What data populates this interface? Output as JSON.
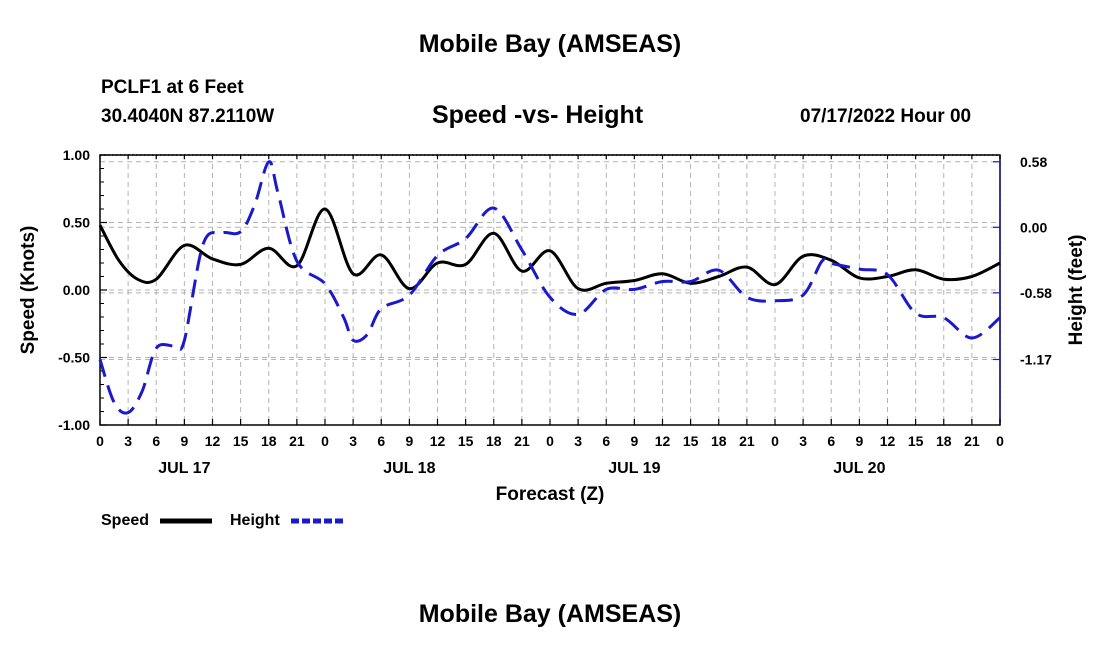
{
  "header": {
    "title": "Mobile Bay (AMSEAS)",
    "station": "PCLF1 at 6 Feet",
    "coords": "30.4040N  87.2110W",
    "chart_title": "Speed -vs- Height",
    "datetime": "07/17/2022 Hour 00"
  },
  "footer": {
    "title": "Mobile Bay (AMSEAS)"
  },
  "colors": {
    "speed": "#000000",
    "height": "#1a1acc",
    "grid": "#b4b4b4"
  },
  "chart_data": {
    "type": "line",
    "title": "Speed -vs- Height",
    "xlabel": "Forecast (Z)",
    "ylabel": "Speed (Knots)",
    "y2label": "Height (feet)",
    "x_hours": [
      0,
      3,
      6,
      9,
      12,
      15,
      18,
      21,
      24,
      27,
      30,
      33,
      36,
      39,
      42,
      45,
      48,
      51,
      54,
      57,
      60,
      63,
      66,
      69,
      72,
      75,
      78,
      81,
      84,
      87,
      90,
      93,
      96
    ],
    "x_tick_labels": [
      "0",
      "3",
      "6",
      "9",
      "12",
      "15",
      "18",
      "21",
      "0",
      "3",
      "6",
      "9",
      "12",
      "15",
      "18",
      "21",
      "0",
      "3",
      "6",
      "9",
      "12",
      "15",
      "18",
      "21",
      "0",
      "3",
      "6",
      "9",
      "12",
      "15",
      "18",
      "21",
      "0"
    ],
    "day_labels": [
      {
        "label": "JUL 17",
        "hour": 9
      },
      {
        "label": "JUL 18",
        "hour": 33
      },
      {
        "label": "JUL 19",
        "hour": 57
      },
      {
        "label": "JUL 20",
        "hour": 81
      }
    ],
    "xlim": [
      0,
      96
    ],
    "ylim": [
      -1.0,
      1.0
    ],
    "y_ticks": [
      "1.00",
      "0.50",
      "0.00",
      "-0.50",
      "-1.00"
    ],
    "y_tick_values": [
      1.0,
      0.5,
      0.0,
      -0.5,
      -1.0
    ],
    "y2lim": [
      -1.75,
      0.64
    ],
    "y2_ticks": [
      "0.58",
      "0.00",
      "-0.58",
      "-1.17"
    ],
    "y2_tick_values": [
      0.58,
      0.0,
      -0.58,
      -1.17
    ],
    "grid": true,
    "legend_position": "bottom-left",
    "series": [
      {
        "name": "Speed",
        "axis": "left",
        "style": "solid",
        "points": [
          [
            0,
            0.48
          ],
          [
            2,
            0.22
          ],
          [
            4,
            0.08
          ],
          [
            6,
            0.08
          ],
          [
            9,
            0.33
          ],
          [
            12,
            0.23
          ],
          [
            15,
            0.19
          ],
          [
            18,
            0.31
          ],
          [
            21,
            0.18
          ],
          [
            24,
            0.6
          ],
          [
            27,
            0.12
          ],
          [
            30,
            0.26
          ],
          [
            33,
            0.01
          ],
          [
            36,
            0.2
          ],
          [
            39,
            0.19
          ],
          [
            42,
            0.42
          ],
          [
            45,
            0.14
          ],
          [
            48,
            0.29
          ],
          [
            51,
            0.01
          ],
          [
            54,
            0.05
          ],
          [
            57,
            0.07
          ],
          [
            60,
            0.12
          ],
          [
            63,
            0.05
          ],
          [
            66,
            0.1
          ],
          [
            69,
            0.17
          ],
          [
            72,
            0.04
          ],
          [
            75,
            0.25
          ],
          [
            78,
            0.22
          ],
          [
            81,
            0.09
          ],
          [
            84,
            0.1
          ],
          [
            87,
            0.15
          ],
          [
            90,
            0.08
          ],
          [
            93,
            0.1
          ],
          [
            96,
            0.2
          ]
        ]
      },
      {
        "name": "Height",
        "axis": "right",
        "style": "dashed",
        "points": [
          [
            0,
            -1.17
          ],
          [
            1.5,
            -1.55
          ],
          [
            3,
            -1.64
          ],
          [
            4.5,
            -1.45
          ],
          [
            6,
            -1.07
          ],
          [
            8,
            -1.05
          ],
          [
            9,
            -1.0
          ],
          [
            11,
            -0.15
          ],
          [
            13,
            -0.05
          ],
          [
            15,
            -0.04
          ],
          [
            16.5,
            0.2
          ],
          [
            18,
            0.58
          ],
          [
            19,
            0.3
          ],
          [
            21,
            -0.3
          ],
          [
            24,
            -0.5
          ],
          [
            26,
            -0.8
          ],
          [
            27,
            -1.0
          ],
          [
            28.5,
            -0.95
          ],
          [
            30,
            -0.72
          ],
          [
            33,
            -0.6
          ],
          [
            36,
            -0.25
          ],
          [
            39,
            -0.1
          ],
          [
            42,
            0.17
          ],
          [
            45,
            -0.2
          ],
          [
            48,
            -0.62
          ],
          [
            51,
            -0.77
          ],
          [
            54,
            -0.55
          ],
          [
            57,
            -0.55
          ],
          [
            60,
            -0.48
          ],
          [
            63,
            -0.48
          ],
          [
            66,
            -0.38
          ],
          [
            69,
            -0.62
          ],
          [
            72,
            -0.65
          ],
          [
            75,
            -0.6
          ],
          [
            77,
            -0.3
          ],
          [
            78,
            -0.32
          ],
          [
            81,
            -0.37
          ],
          [
            84,
            -0.42
          ],
          [
            87,
            -0.76
          ],
          [
            90,
            -0.8
          ],
          [
            93,
            -0.98
          ],
          [
            96,
            -0.8
          ]
        ]
      }
    ]
  }
}
